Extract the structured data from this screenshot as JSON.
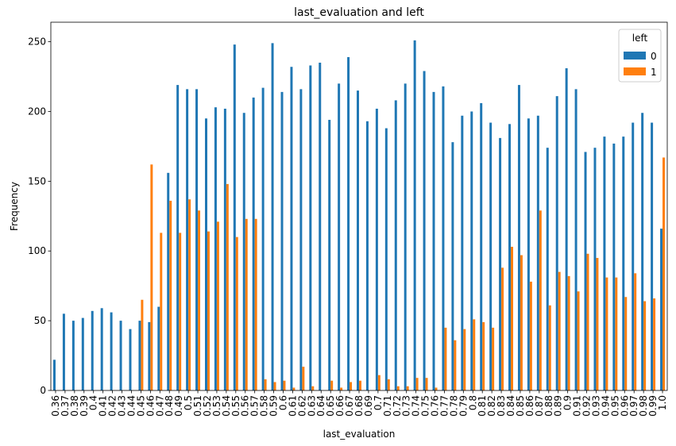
{
  "chart_data": {
    "type": "bar",
    "title": "last_evaluation and left",
    "xlabel": "last_evaluation",
    "ylabel": "Frequency",
    "ylim": [
      0,
      264
    ],
    "yticks": [
      0,
      50,
      100,
      150,
      200,
      250
    ],
    "categories": [
      "0.36",
      "0.37",
      "0.38",
      "0.39",
      "0.4",
      "0.41",
      "0.42",
      "0.43",
      "0.44",
      "0.45",
      "0.46",
      "0.47",
      "0.48",
      "0.49",
      "0.5",
      "0.51",
      "0.52",
      "0.53",
      "0.54",
      "0.55",
      "0.56",
      "0.57",
      "0.58",
      "0.59",
      "0.6",
      "0.61",
      "0.62",
      "0.63",
      "0.64",
      "0.65",
      "0.66",
      "0.67",
      "0.68",
      "0.69",
      "0.7",
      "0.71",
      "0.72",
      "0.73",
      "0.74",
      "0.75",
      "0.76",
      "0.77",
      "0.78",
      "0.79",
      "0.8",
      "0.81",
      "0.82",
      "0.83",
      "0.84",
      "0.85",
      "0.86",
      "0.87",
      "0.88",
      "0.89",
      "0.9",
      "0.91",
      "0.92",
      "0.93",
      "0.94",
      "0.95",
      "0.96",
      "0.97",
      "0.98",
      "0.99",
      "1.0"
    ],
    "series": [
      {
        "name": "0",
        "color": "#1f77b4",
        "values": [
          22,
          55,
          50,
          52,
          57,
          59,
          56,
          50,
          44,
          50,
          49,
          60,
          156,
          219,
          216,
          216,
          195,
          203,
          202,
          248,
          199,
          210,
          217,
          249,
          214,
          232,
          216,
          233,
          235,
          194,
          220,
          239,
          215,
          193,
          202,
          188,
          208,
          220,
          251,
          229,
          214,
          218,
          178,
          197,
          200,
          206,
          192,
          181,
          191,
          219,
          195,
          197,
          174,
          211,
          231,
          216,
          171,
          174,
          182,
          177,
          182,
          192,
          199,
          192,
          116
        ]
      },
      {
        "name": "1",
        "color": "#ff7f0e",
        "values": [
          0,
          0,
          0,
          0,
          0,
          0,
          0,
          0,
          0,
          65,
          162,
          113,
          136,
          113,
          137,
          129,
          114,
          121,
          148,
          110,
          123,
          123,
          8,
          6,
          7,
          2,
          17,
          3,
          0,
          7,
          2,
          6,
          7,
          0,
          11,
          8,
          3,
          3,
          9,
          9,
          2,
          45,
          36,
          44,
          51,
          49,
          45,
          88,
          103,
          97,
          78,
          129,
          61,
          85,
          82,
          71,
          98,
          95,
          81,
          81,
          67,
          84,
          64,
          66,
          167
        ]
      }
    ],
    "legend": {
      "title": "left",
      "placement": "top-right"
    },
    "grid": false
  }
}
